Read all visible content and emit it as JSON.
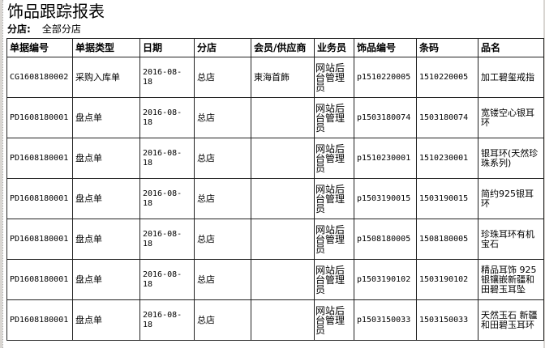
{
  "title": "饰品跟踪报表",
  "branch_label": "分店:",
  "branch_value": "全部分店",
  "columns": [
    "单据编号",
    "单据类型",
    "日期",
    "分店",
    "会员/供应商",
    "业务员",
    "饰品编号",
    "条码",
    "品名"
  ],
  "rows": [
    [
      "CG1608180002",
      "采购入库单",
      "2016-08-18",
      "总店",
      "東海首飾",
      "网站后台管理员",
      "p1510220005",
      "1510220005",
      "加工碧玺戒指"
    ],
    [
      "PD1608180001",
      "盘点单",
      "2016-08-18",
      "总店",
      "",
      "网站后台管理员",
      "p1503180074",
      "1503180074",
      "宽镂空心银耳环"
    ],
    [
      "PD1608180001",
      "盘点单",
      "2016-08-18",
      "总店",
      "",
      "网站后台管理员",
      "p1510230001",
      "1510230001",
      "银耳环(天然珍珠系列)"
    ],
    [
      "PD1608180001",
      "盘点单",
      "2016-08-18",
      "总店",
      "",
      "网站后台管理员",
      "p1503190015",
      "1503190015",
      "简约925银耳环"
    ],
    [
      "PD1608180001",
      "盘点单",
      "2016-08-18",
      "总店",
      "",
      "网站后台管理员",
      "p1508180005",
      "1508180005",
      "珍珠耳环有机宝石"
    ],
    [
      "PD1608180001",
      "盘点单",
      "2016-08-18",
      "总店",
      "",
      "网站后台管理员",
      "p1503190102",
      "1503190102",
      "精品耳饰 925银镶嵌新疆和田碧玉耳坠"
    ],
    [
      "PD1608180001",
      "盘点单",
      "2016-08-18",
      "总店",
      "",
      "网站后台管理员",
      "p1503150033",
      "1503150033",
      "天然玉石 新疆和田碧玉耳环"
    ]
  ]
}
